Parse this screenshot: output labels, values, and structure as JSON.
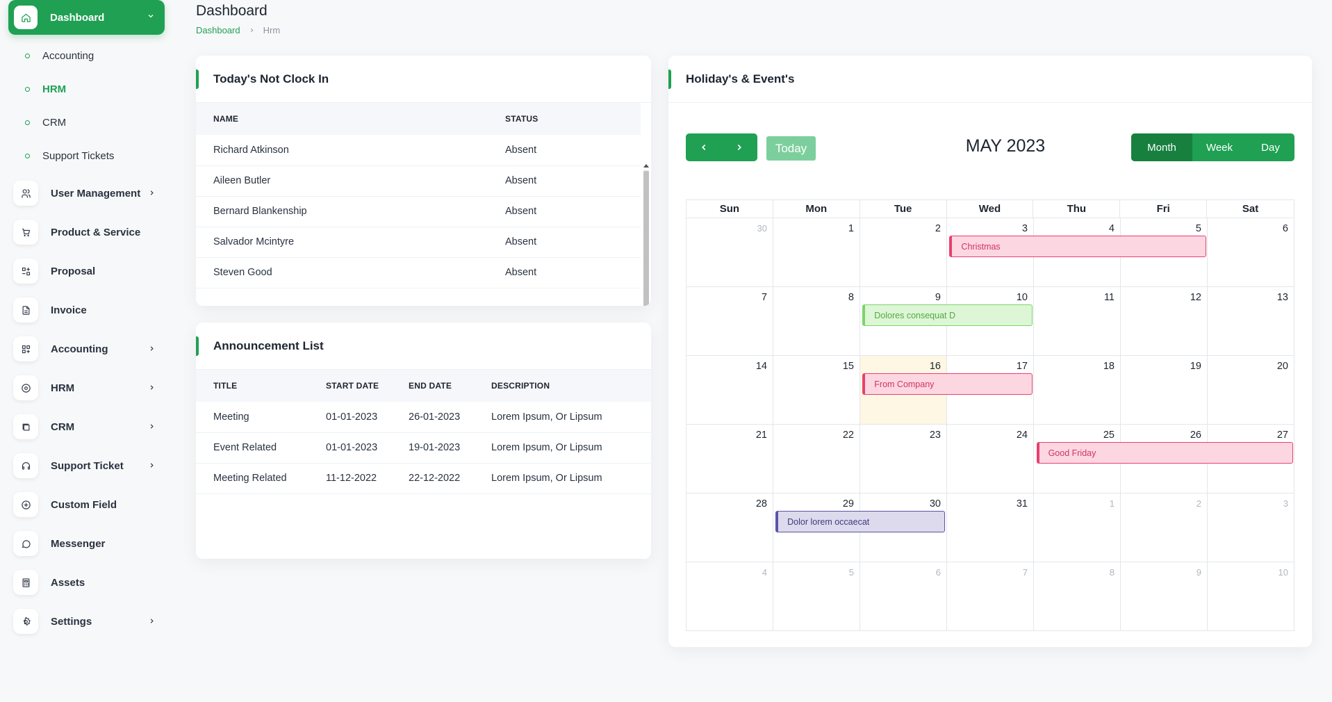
{
  "sidebar": {
    "active": {
      "label": "Dashboard",
      "icon": "home-icon"
    },
    "sub_items": [
      {
        "label": "Accounting",
        "active": false
      },
      {
        "label": "HRM",
        "active": true
      },
      {
        "label": "CRM",
        "active": false
      },
      {
        "label": "Support Tickets",
        "active": false
      }
    ],
    "items": [
      {
        "label": "User Management",
        "icon": "users-icon",
        "chevron": true
      },
      {
        "label": "Product & Service",
        "icon": "cart-icon",
        "chevron": false
      },
      {
        "label": "Proposal",
        "icon": "proposal-icon",
        "chevron": false
      },
      {
        "label": "Invoice",
        "icon": "file-invoice-icon",
        "chevron": false
      },
      {
        "label": "Accounting",
        "icon": "apps-icon",
        "chevron": true
      },
      {
        "label": "HRM",
        "icon": "hrm-icon",
        "chevron": true
      },
      {
        "label": "CRM",
        "icon": "crm-icon",
        "chevron": true
      },
      {
        "label": "Support Ticket",
        "icon": "headset-icon",
        "chevron": true
      },
      {
        "label": "Custom Field",
        "icon": "plus-circle-icon",
        "chevron": false
      },
      {
        "label": "Messenger",
        "icon": "message-icon",
        "chevron": false
      },
      {
        "label": "Assets",
        "icon": "calculator-icon",
        "chevron": false
      },
      {
        "label": "Settings",
        "icon": "settings-icon",
        "chevron": true
      }
    ]
  },
  "header": {
    "title": "Dashboard",
    "breadcrumb": {
      "link": "Dashboard",
      "current": "Hrm"
    }
  },
  "not_clock_in": {
    "title": "Today's Not Clock In",
    "columns": [
      "NAME",
      "STATUS"
    ],
    "rows": [
      {
        "name": "Richard Atkinson",
        "status": "Absent"
      },
      {
        "name": "Aileen Butler",
        "status": "Absent"
      },
      {
        "name": "Bernard Blankenship",
        "status": "Absent"
      },
      {
        "name": "Salvador Mcintyre",
        "status": "Absent"
      },
      {
        "name": "Steven Good",
        "status": "Absent"
      }
    ]
  },
  "announcements": {
    "title": "Announcement List",
    "columns": [
      "TITLE",
      "START DATE",
      "END DATE",
      "DESCRIPTION"
    ],
    "rows": [
      {
        "title": "Meeting",
        "start": "01-01-2023",
        "end": "26-01-2023",
        "description": "Lorem Ipsum, Or Lipsum"
      },
      {
        "title": "Event Related",
        "start": "01-01-2023",
        "end": "19-01-2023",
        "description": "Lorem Ipsum, Or Lipsum"
      },
      {
        "title": "Meeting Related",
        "start": "11-12-2022",
        "end": "22-12-2022",
        "description": "Lorem Ipsum, Or Lipsum"
      }
    ]
  },
  "calendar": {
    "title": "Holiday's & Event's",
    "today_label": "Today",
    "month_title": "MAY 2023",
    "views": [
      {
        "label": "Month",
        "active": true
      },
      {
        "label": "Week",
        "active": false
      },
      {
        "label": "Day",
        "active": false
      }
    ],
    "weekdays": [
      "Sun",
      "Mon",
      "Tue",
      "Wed",
      "Thu",
      "Fri",
      "Sat"
    ],
    "weeks": [
      [
        {
          "d": "30",
          "o": true
        },
        {
          "d": "1"
        },
        {
          "d": "2"
        },
        {
          "d": "3"
        },
        {
          "d": "4"
        },
        {
          "d": "5"
        },
        {
          "d": "6"
        }
      ],
      [
        {
          "d": "7"
        },
        {
          "d": "8"
        },
        {
          "d": "9"
        },
        {
          "d": "10"
        },
        {
          "d": "11"
        },
        {
          "d": "12"
        },
        {
          "d": "13"
        }
      ],
      [
        {
          "d": "14"
        },
        {
          "d": "15"
        },
        {
          "d": "16",
          "t": true
        },
        {
          "d": "17"
        },
        {
          "d": "18"
        },
        {
          "d": "19"
        },
        {
          "d": "20"
        }
      ],
      [
        {
          "d": "21"
        },
        {
          "d": "22"
        },
        {
          "d": "23"
        },
        {
          "d": "24"
        },
        {
          "d": "25"
        },
        {
          "d": "26"
        },
        {
          "d": "27"
        }
      ],
      [
        {
          "d": "28"
        },
        {
          "d": "29"
        },
        {
          "d": "30"
        },
        {
          "d": "31"
        },
        {
          "d": "1",
          "o": true
        },
        {
          "d": "2",
          "o": true
        },
        {
          "d": "3",
          "o": true
        }
      ],
      [
        {
          "d": "4",
          "o": true
        },
        {
          "d": "5",
          "o": true
        },
        {
          "d": "6",
          "o": true
        },
        {
          "d": "7",
          "o": true
        },
        {
          "d": "8",
          "o": true
        },
        {
          "d": "9",
          "o": true
        },
        {
          "d": "10",
          "o": true
        }
      ]
    ],
    "events": [
      {
        "title": "Christmas",
        "start": "2023-05-03",
        "end": "2023-05-05",
        "style": "pink"
      },
      {
        "title": "Dolores consequat D",
        "start": "2023-05-09",
        "end": "2023-05-10",
        "style": "green"
      },
      {
        "title": "From Company",
        "start": "2023-05-16",
        "end": "2023-05-17",
        "style": "pink"
      },
      {
        "title": "Good Friday",
        "start": "2023-05-25",
        "end": "2023-05-27",
        "style": "pink"
      },
      {
        "title": "Dolor lorem occaecat",
        "start": "2023-05-29",
        "end": "2023-05-30",
        "style": "purple"
      }
    ],
    "event_styles": {
      "pink": {
        "bg": "#fcd7e2",
        "border": "#e8406f",
        "text": "#d23360"
      },
      "green": {
        "bg": "#ddf6d6",
        "border": "#7dd36a",
        "text": "#55a844"
      },
      "purple": {
        "bg": "#dcdaec",
        "border": "#5b54a8",
        "text": "#3e3a80"
      }
    }
  },
  "colors": {
    "primary": "#1fa053",
    "primary_dark": "#17803f",
    "today_btn": "#7ccf9c"
  }
}
